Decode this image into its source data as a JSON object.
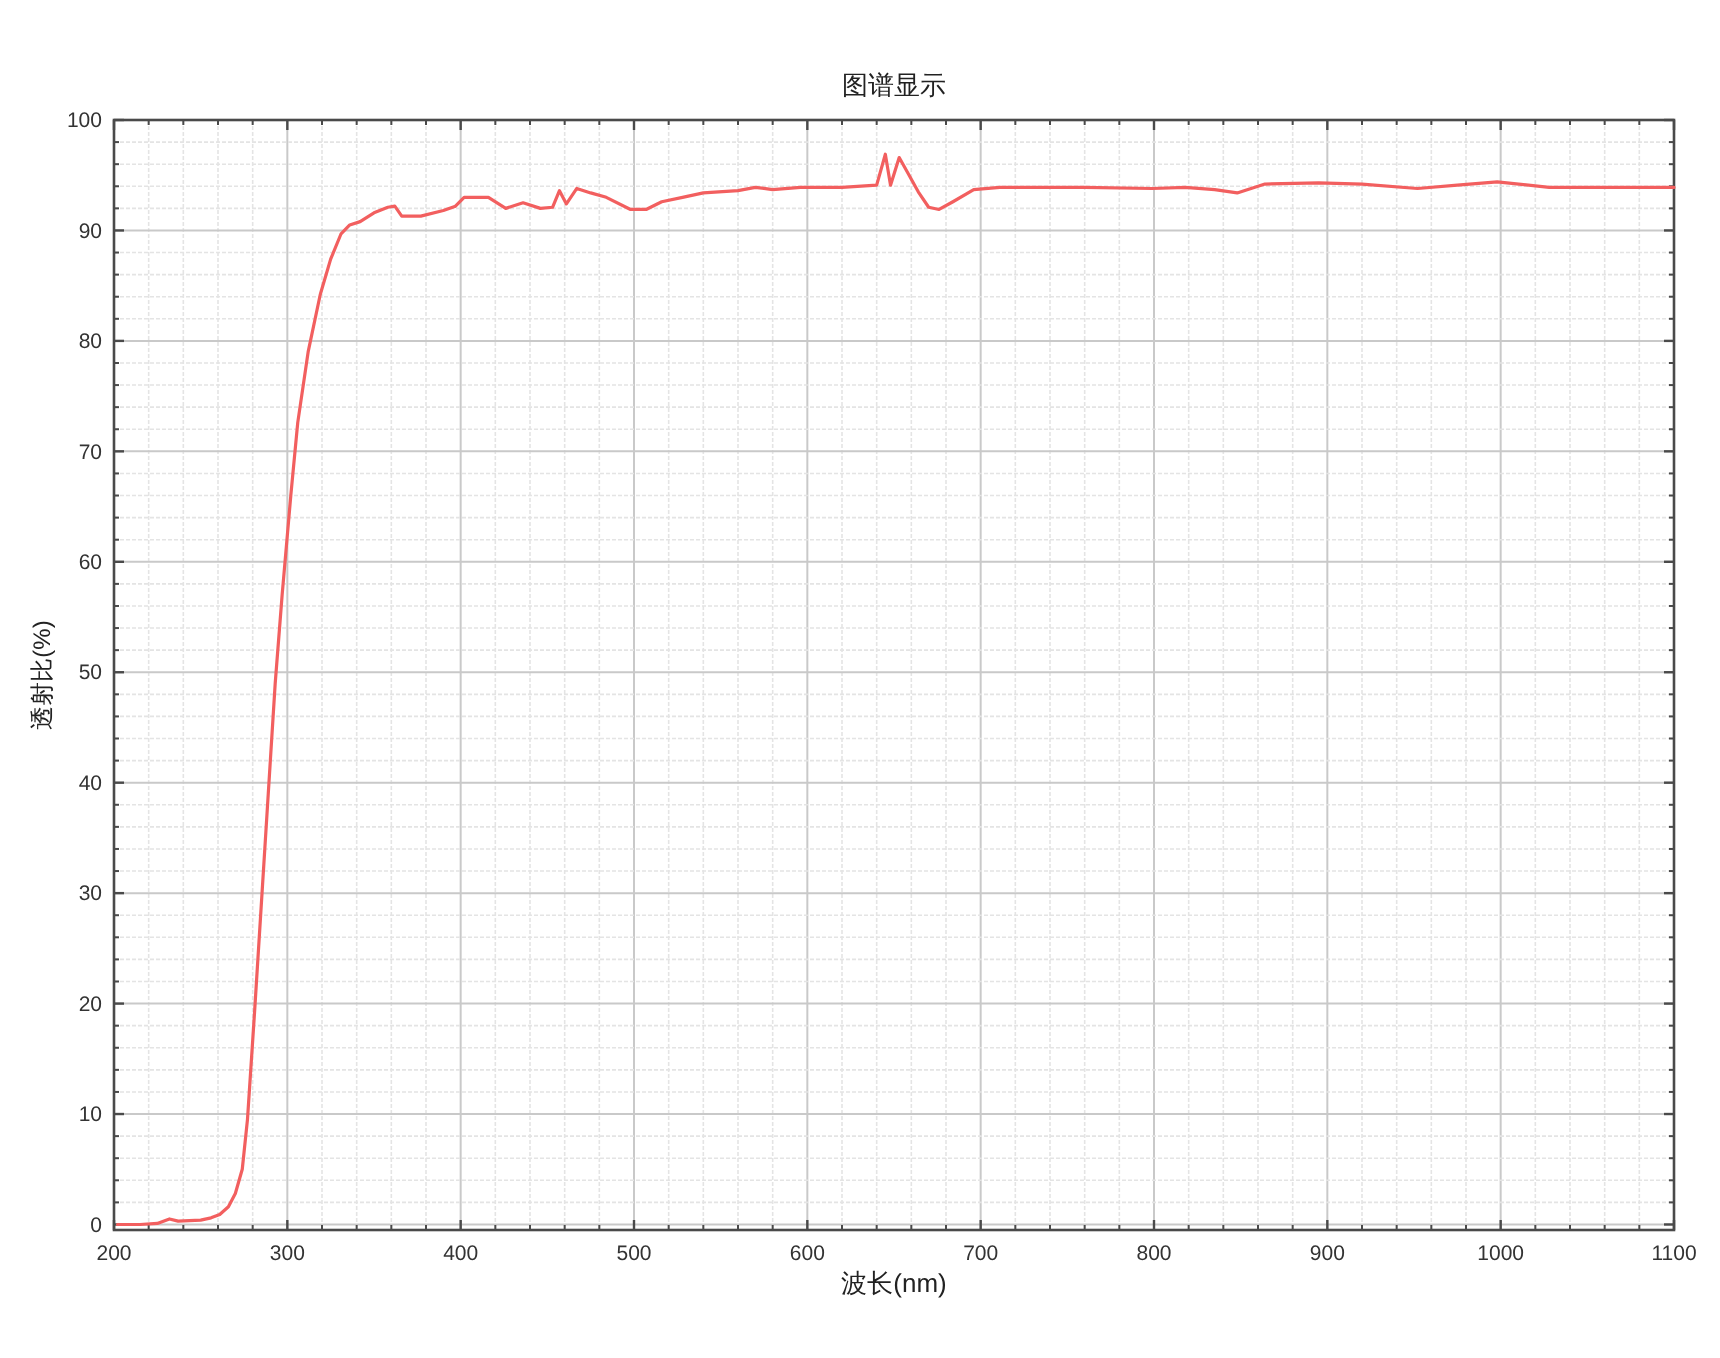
{
  "chart_data": {
    "type": "line",
    "title": "图谱显示",
    "xlabel": "波长(nm)",
    "ylabel": "透射比(%)",
    "xlim": [
      200,
      1100
    ],
    "ylim": [
      -0.5,
      100
    ],
    "xticks": [
      200,
      300,
      400,
      500,
      600,
      700,
      800,
      900,
      1000,
      1100
    ],
    "yticks": [
      0,
      10,
      20,
      30,
      40,
      50,
      60,
      70,
      80,
      90,
      100
    ],
    "grid": true,
    "series": [
      {
        "color": "#f25f5f",
        "x": [
          202,
          215,
          225,
          232,
          237,
          250,
          256,
          261,
          266,
          270,
          274,
          277,
          281,
          285,
          289,
          293,
          297,
          302,
          306,
          312,
          319,
          325,
          331,
          336,
          342,
          350,
          358,
          362,
          366,
          377,
          390,
          397,
          402,
          416,
          426,
          436,
          446,
          453,
          457,
          461,
          467,
          475,
          484,
          498,
          507,
          516,
          528,
          540,
          560,
          570,
          580,
          596,
          620,
          640,
          645,
          648,
          653,
          658,
          664,
          670,
          676,
          684,
          696,
          711,
          760,
          799,
          818,
          835,
          848,
          864,
          895,
          920,
          952,
          975,
          998,
          1028,
          1060,
          1100
        ],
        "values": [
          0,
          0,
          0.1,
          0.5,
          0.3,
          0.4,
          0.6,
          0.9,
          1.6,
          2.8,
          5.0,
          9.5,
          19,
          29,
          39,
          49,
          57,
          66,
          72.6,
          79,
          84.2,
          87.4,
          89.7,
          90.5,
          90.8,
          91.6,
          92.1,
          92.2,
          91.3,
          91.3,
          91.8,
          92.2,
          93.0,
          93.0,
          92.0,
          92.5,
          92.0,
          92.1,
          93.6,
          92.4,
          93.8,
          93.4,
          93.0,
          91.9,
          91.9,
          92.6,
          93.0,
          93.4,
          93.6,
          93.9,
          93.7,
          93.9,
          93.9,
          94.1,
          96.9,
          94.1,
          96.6,
          95.2,
          93.5,
          92.1,
          91.9,
          92.6,
          93.7,
          93.9,
          93.9,
          93.8,
          93.9,
          93.7,
          93.4,
          94.2,
          94.3,
          94.2,
          93.8,
          94.1,
          94.4,
          93.9,
          93.9,
          93.9
        ]
      }
    ]
  }
}
